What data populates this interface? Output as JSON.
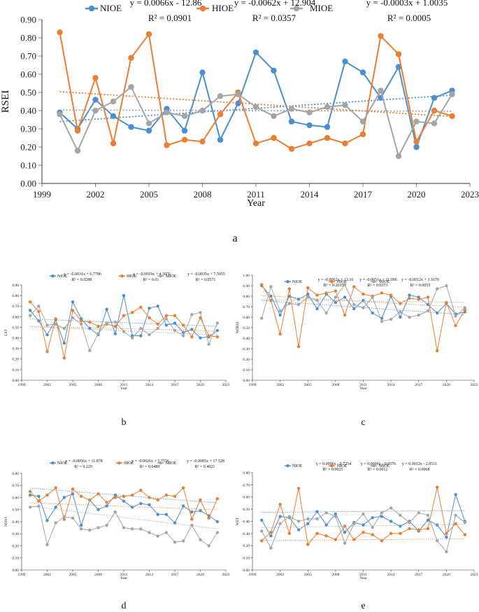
{
  "colors": {
    "NIOE": "#4a90d0",
    "HIOE": "#ed7d31",
    "MIOE": "#a5a5a5"
  },
  "chart_data": [
    {
      "id": "a",
      "type": "line",
      "caption": "a",
      "title": "",
      "xlabel": "Year",
      "ylabel": "RSEI",
      "xlim": [
        1999,
        2023
      ],
      "ylim": [
        0,
        0.9
      ],
      "xticks": [
        1999,
        2002,
        2005,
        2008,
        2011,
        2014,
        2017,
        2020,
        2023
      ],
      "xtick_labels": [
        "1999",
        "2002",
        "2005",
        "2008",
        "2011",
        "2014",
        "2017",
        "2020",
        "2023"
      ],
      "yticks": [
        0,
        0.1,
        0.2,
        0.3,
        0.4,
        0.5,
        0.6,
        0.7,
        0.8,
        0.9
      ],
      "ytick_labels": [
        "0.00",
        "0.10",
        "0.20",
        "0.30",
        "0.40",
        "0.50",
        "0.60",
        "0.70",
        "0.80",
        "0.90"
      ],
      "x": [
        2000,
        2001,
        2002,
        2003,
        2004,
        2005,
        2006,
        2007,
        2008,
        2009,
        2010,
        2011,
        2012,
        2013,
        2014,
        2015,
        2016,
        2017,
        2018,
        2019,
        2020,
        2021,
        2022
      ],
      "series": [
        {
          "name": "NIOE",
          "equation": "y = 0.0066x - 12.86",
          "r2": "R² = 0.0901",
          "trend": [
            0.0066,
            -12.86
          ],
          "values": [
            0.39,
            0.3,
            0.46,
            0.37,
            0.31,
            0.29,
            0.41,
            0.29,
            0.61,
            0.24,
            0.44,
            0.72,
            0.62,
            0.34,
            0.32,
            0.31,
            0.67,
            0.61,
            0.47,
            0.64,
            0.2,
            0.47,
            0.51
          ]
        },
        {
          "name": "HIOE",
          "equation": "y = -0.0062x + 12.904",
          "r2": "R² = 0.0357",
          "trend": [
            -0.0062,
            12.904
          ],
          "values": [
            0.83,
            0.29,
            0.58,
            0.22,
            0.69,
            0.82,
            0.21,
            0.24,
            0.23,
            0.38,
            0.5,
            0.22,
            0.25,
            0.19,
            0.22,
            0.25,
            0.22,
            0.27,
            0.81,
            0.71,
            0.23,
            0.4,
            0.37
          ]
        },
        {
          "name": "MIOE",
          "equation": "y = -0.0003x + 1.0035",
          "r2": "R² = 0.0005",
          "trend": [
            -0.0003,
            1.0035
          ],
          "values": [
            0.38,
            0.18,
            0.4,
            0.45,
            0.53,
            0.33,
            0.39,
            0.37,
            0.4,
            0.48,
            0.49,
            0.42,
            0.37,
            0.41,
            0.39,
            0.42,
            0.43,
            0.34,
            0.51,
            0.15,
            0.34,
            0.33,
            0.49
          ]
        }
      ]
    },
    {
      "id": "b",
      "type": "line",
      "caption": "b",
      "title": "",
      "xlabel": "Year",
      "ylabel": "LST",
      "xlim": [
        1999,
        2023
      ],
      "ylim": [
        0,
        0.9
      ],
      "xticks": [
        1999,
        2002,
        2005,
        2008,
        2011,
        2014,
        2017,
        2020,
        2023
      ],
      "xtick_labels": [
        "1999",
        "2002",
        "2005",
        "2008",
        "2011",
        "2014",
        "2017",
        "2020",
        "2023"
      ],
      "yticks": [
        0,
        0.1,
        0.2,
        0.3,
        0.4,
        0.5,
        0.6,
        0.7,
        0.8,
        0.9
      ],
      "ytick_labels": [
        "0.00",
        "0.10",
        "0.20",
        "0.30",
        "0.40",
        "0.50",
        "0.60",
        "0.70",
        "0.80",
        "0.90"
      ],
      "x": [
        2000,
        2001,
        2002,
        2003,
        2004,
        2005,
        2006,
        2007,
        2008,
        2009,
        2010,
        2011,
        2012,
        2013,
        2014,
        2015,
        2016,
        2017,
        2018,
        2019,
        2020,
        2021,
        2022
      ],
      "series": [
        {
          "name": "NIOE",
          "equation": "y = -0.0031x + 6.7786",
          "r2": "R² = 0.0288",
          "trend": [
            -0.0031,
            6.7786
          ],
          "values": [
            0.66,
            0.56,
            0.43,
            0.57,
            0.35,
            0.74,
            0.58,
            0.49,
            0.43,
            0.67,
            0.44,
            0.8,
            0.42,
            0.42,
            0.68,
            0.7,
            0.52,
            0.54,
            0.45,
            0.48,
            0.4,
            0.41,
            0.47
          ]
        },
        {
          "name": "HIOE",
          "equation": "y = -0.0019x + 4.3076",
          "r2": "R² = 0.01",
          "trend": [
            -0.0019,
            4.3076
          ],
          "values": [
            0.74,
            0.65,
            0.27,
            0.58,
            0.21,
            0.66,
            0.56,
            0.55,
            0.51,
            0.53,
            0.51,
            0.61,
            0.64,
            0.69,
            0.59,
            0.53,
            0.61,
            0.61,
            0.52,
            0.41,
            0.59,
            0.42,
            0.41
          ]
        },
        {
          "name": "MIOE",
          "equation": "y = -0.0035x + 7.5055",
          "r2": "R² = 0.0571",
          "trend": [
            -0.0035,
            7.5055
          ],
          "values": [
            0.61,
            0.7,
            0.52,
            0.53,
            0.49,
            0.59,
            0.53,
            0.28,
            0.44,
            0.54,
            0.55,
            0.46,
            0.4,
            0.49,
            0.43,
            0.49,
            0.58,
            0.47,
            0.42,
            0.62,
            0.64,
            0.34,
            0.54
          ]
        }
      ]
    },
    {
      "id": "c",
      "type": "line",
      "caption": "c",
      "title": "",
      "xlabel": "Year",
      "ylabel": "NDBSI",
      "xlim": [
        1999,
        2023
      ],
      "ylim": [
        0,
        1.0
      ],
      "xticks": [
        1999,
        2002,
        2005,
        2008,
        2011,
        2014,
        2017,
        2020,
        2023
      ],
      "xtick_labels": [
        "1999",
        "2002",
        "2005",
        "2008",
        "2011",
        "2014",
        "2017",
        "2020",
        "2023"
      ],
      "yticks": [
        0,
        0.1,
        0.2,
        0.3,
        0.4,
        0.5,
        0.6,
        0.7,
        0.8,
        0.9,
        1.0
      ],
      "ytick_labels": [
        "0.00",
        "0.10",
        "0.20",
        "0.30",
        "0.40",
        "0.50",
        "0.60",
        "0.70",
        "0.80",
        "0.90",
        "1.00"
      ],
      "x": [
        2000,
        2001,
        2002,
        2003,
        2004,
        2005,
        2006,
        2007,
        2008,
        2009,
        2010,
        2011,
        2012,
        2013,
        2014,
        2015,
        2016,
        2017,
        2018,
        2019,
        2020,
        2021,
        2022
      ],
      "series": [
        {
          "name": "NIOE",
          "equation": "y = -0.0062x + 13.16",
          "r2": "R² = 0.2035",
          "trend": [
            -0.0062,
            13.16
          ],
          "values": [
            0.9,
            0.8,
            0.62,
            0.8,
            0.77,
            0.82,
            0.68,
            0.82,
            0.74,
            0.79,
            0.68,
            0.76,
            0.64,
            0.59,
            0.8,
            0.6,
            0.81,
            0.79,
            0.72,
            0.64,
            0.73,
            0.63,
            0.65
          ]
        },
        {
          "name": "HIOE",
          "equation": "y = -0.0051x + 11.006",
          "r2": "R² = 0.0373",
          "trend": [
            -0.0051,
            11.006
          ],
          "values": [
            0.91,
            0.76,
            0.44,
            0.87,
            0.32,
            0.88,
            0.81,
            0.83,
            0.85,
            0.62,
            0.89,
            0.82,
            0.8,
            0.83,
            0.81,
            0.73,
            0.78,
            0.77,
            0.79,
            0.28,
            0.74,
            0.52,
            0.67
          ]
        },
        {
          "name": "MIOE",
          "equation": "y = -0.0012x + 3.1679",
          "r2": "R² = 0.0055",
          "trend": [
            -0.0012,
            3.1679
          ],
          "values": [
            0.59,
            0.89,
            0.66,
            0.73,
            0.72,
            0.79,
            0.76,
            0.64,
            0.79,
            0.91,
            0.72,
            0.69,
            0.79,
            0.56,
            0.58,
            0.65,
            0.6,
            0.62,
            0.66,
            0.87,
            0.9,
            0.61,
            0.69
          ]
        }
      ]
    },
    {
      "id": "d",
      "type": "line",
      "caption": "d",
      "title": "",
      "xlabel": "Year",
      "ylabel": "NDVI",
      "xlim": [
        1999,
        2023
      ],
      "ylim": [
        0,
        0.8
      ],
      "xticks": [
        1999,
        2002,
        2005,
        2008,
        2011,
        2014,
        2017,
        2020,
        2023
      ],
      "xtick_labels": [
        "1999",
        "2002",
        "2005",
        "2008",
        "2011",
        "2014",
        "2017",
        "2020",
        "2023"
      ],
      "yticks": [
        0,
        0.1,
        0.2,
        0.3,
        0.4,
        0.5,
        0.6,
        0.7,
        0.8
      ],
      "ytick_labels": [
        "0.00",
        "0.10",
        "0.20",
        "0.30",
        "0.40",
        "0.50",
        "0.60",
        "0.70",
        "0.80"
      ],
      "x": [
        2000,
        2001,
        2002,
        2003,
        2004,
        2005,
        2006,
        2007,
        2008,
        2009,
        2010,
        2011,
        2012,
        2013,
        2014,
        2015,
        2016,
        2017,
        2018,
        2019,
        2020,
        2021,
        2022
      ],
      "series": [
        {
          "name": "NIOE",
          "equation": "y = -0.0056x + 11.878",
          "r2": "R² = 0.229",
          "trend": [
            -0.0056,
            11.878
          ],
          "values": [
            0.62,
            0.61,
            0.41,
            0.52,
            0.6,
            0.63,
            0.37,
            0.58,
            0.5,
            0.53,
            0.62,
            0.57,
            0.52,
            0.55,
            0.54,
            0.46,
            0.46,
            0.39,
            0.53,
            0.48,
            0.49,
            0.45,
            0.4
          ]
        },
        {
          "name": "HIOE",
          "equation": "y = -0.0026x + 5.7556",
          "r2": "R² = 0.0489",
          "trend": [
            -0.0026,
            5.7556
          ],
          "values": [
            0.65,
            0.57,
            0.62,
            0.68,
            0.42,
            0.67,
            0.61,
            0.58,
            0.63,
            0.56,
            0.6,
            0.61,
            0.62,
            0.66,
            0.6,
            0.58,
            0.62,
            0.61,
            0.68,
            0.42,
            0.58,
            0.43,
            0.59
          ]
        },
        {
          "name": "MIOE",
          "equation": "y = -0.0085x + 17.528",
          "r2": "R² = 0.4021",
          "trend": [
            -0.0085,
            17.528
          ],
          "values": [
            0.52,
            0.53,
            0.21,
            0.39,
            0.44,
            0.43,
            0.34,
            0.33,
            0.35,
            0.37,
            0.48,
            0.35,
            0.34,
            0.34,
            0.31,
            0.28,
            0.31,
            0.23,
            0.24,
            0.37,
            0.25,
            0.2,
            0.31
          ]
        }
      ]
    },
    {
      "id": "e",
      "type": "line",
      "caption": "e",
      "title": "",
      "xlabel": "Year",
      "ylabel": "WET",
      "xlim": [
        1999,
        2023
      ],
      "ylim": [
        0,
        0.8
      ],
      "xticks": [
        1999,
        2002,
        2005,
        2008,
        2011,
        2014,
        2017,
        2020,
        2023
      ],
      "xtick_labels": [
        "1999",
        "2002",
        "2005",
        "2008",
        "2011",
        "2014",
        "2017",
        "2020",
        "2023"
      ],
      "yticks": [
        0,
        0.1,
        0.2,
        0.3,
        0.4,
        0.5,
        0.6,
        0.7,
        0.8
      ],
      "ytick_labels": [
        "0.00",
        "0.10",
        "0.20",
        "0.30",
        "0.40",
        "0.50",
        "0.60",
        "0.70",
        "0.80"
      ],
      "x": [
        2000,
        2001,
        2002,
        2003,
        2004,
        2005,
        2006,
        2007,
        2008,
        2009,
        2010,
        2011,
        2012,
        2013,
        2014,
        2015,
        2016,
        2017,
        2018,
        2019,
        2020,
        2021,
        2022
      ],
      "series": [
        {
          "name": "NIOE",
          "equation": "y = 0.0006x - 0.7254",
          "r2": "R² = 0.0025",
          "trend": [
            0.0006,
            -0.7254
          ],
          "values": [
            0.41,
            0.28,
            0.44,
            0.43,
            0.33,
            0.38,
            0.48,
            0.37,
            0.46,
            0.31,
            0.39,
            0.37,
            0.43,
            0.44,
            0.4,
            0.36,
            0.4,
            0.32,
            0.41,
            0.37,
            0.27,
            0.62,
            0.4
          ]
        },
        {
          "name": "HIOE",
          "equation": "y = 0.0006x - 0.9576",
          "r2": "R² = 0.0012",
          "trend": [
            0.0006,
            -0.9576
          ],
          "values": [
            0.24,
            0.31,
            0.54,
            0.3,
            0.67,
            0.21,
            0.3,
            0.28,
            0.25,
            0.36,
            0.25,
            0.31,
            0.29,
            0.24,
            0.3,
            0.3,
            0.34,
            0.33,
            0.34,
            0.68,
            0.3,
            0.38,
            0.29
          ]
        },
        {
          "name": "MIOE",
          "equation": "y = 0.0012x - 2.0511",
          "r2": "R² = 0.0068",
          "trend": [
            0.0012,
            -2.0511
          ],
          "values": [
            0.32,
            0.18,
            0.38,
            0.44,
            0.4,
            0.42,
            0.42,
            0.47,
            0.44,
            0.22,
            0.38,
            0.46,
            0.35,
            0.47,
            0.51,
            0.45,
            0.39,
            0.47,
            0.45,
            0.24,
            0.15,
            0.45,
            0.39
          ]
        }
      ]
    }
  ]
}
